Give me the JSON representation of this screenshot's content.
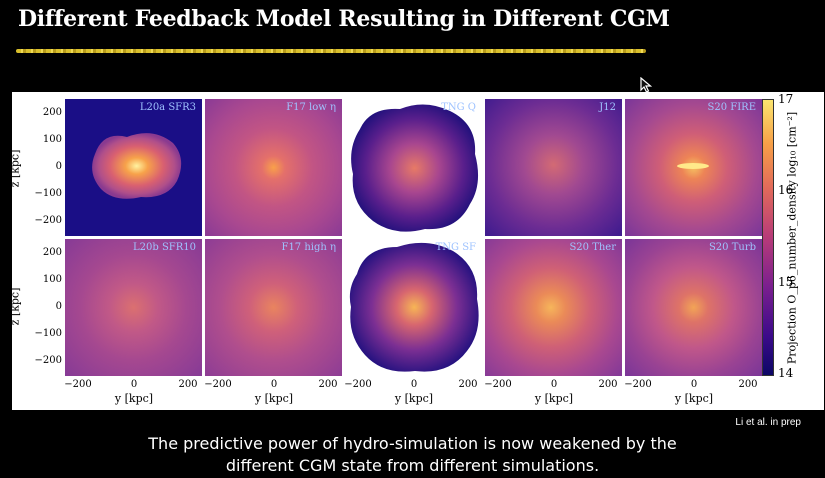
{
  "slide": {
    "title": "Different Feedback Model Resulting in Different CGM",
    "credit": "Li et al. in prep",
    "caption_line1": "The predictive power of hydro-simulation is now weakened by the",
    "caption_line2": "different CGM state from different simulations."
  },
  "figure": {
    "panels_row1": [
      "L20a SFR3",
      "F17 low η",
      "TNG Q",
      "J12",
      "S20 FIRE"
    ],
    "panels_row2": [
      "L20b SFR10",
      "F17 high η",
      "TNG SF",
      "S20 Ther",
      "S20 Turb"
    ],
    "y_axis_label": "z  [kpc]",
    "x_axis_label": "y  [kpc]",
    "y_ticks": [
      "200",
      "100",
      "0",
      "−100",
      "−200"
    ],
    "x_ticks": [
      "−200",
      "0",
      "200"
    ],
    "colorbar": {
      "ticks": [
        "17",
        "16",
        "15",
        "14"
      ],
      "label": "Projection O_p6_number_density log₁₀ [cm⁻²]",
      "range": [
        14,
        17
      ]
    }
  },
  "colors": {
    "background": "#000000",
    "title_rule": "#e2c93a",
    "caption_text": "#ffffff",
    "panel_label": "#9fc3ff"
  },
  "icons": {
    "cursor": "mouse-pointer-icon"
  }
}
